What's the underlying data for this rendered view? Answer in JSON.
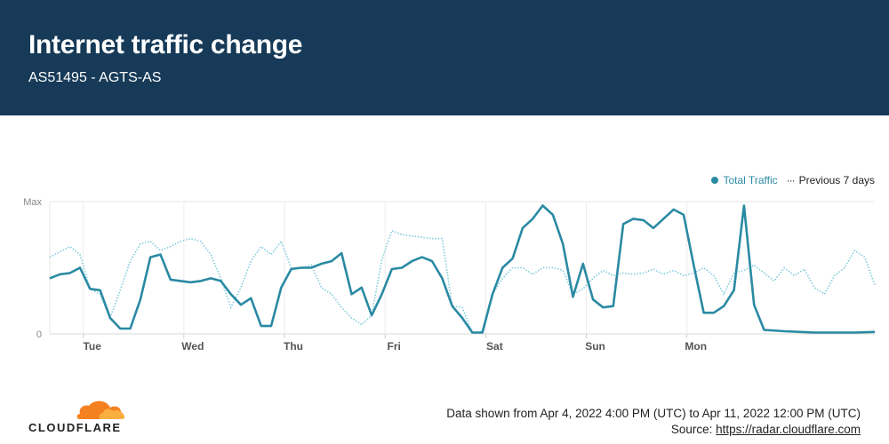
{
  "header": {
    "title": "Internet traffic change",
    "subtitle": "AS51495 - AGTS-AS"
  },
  "legend": {
    "current": "Total Traffic",
    "previous": "Previous 7 days"
  },
  "footer": {
    "range": "Data shown from Apr 4, 2022 4:00 PM (UTC) to Apr 11, 2022 12:00 PM (UTC)",
    "source_prefix": "Source: ",
    "source_link": "https://radar.cloudflare.com"
  },
  "logo": {
    "text": "CLOUDFLARE",
    "icon": "cloud-icon"
  },
  "colors": {
    "header_bg": "#163a58",
    "current": "#2a8aa3",
    "previous": "#7fcbdc"
  },
  "chart_data": {
    "type": "line",
    "x_ticks": [
      "Tue",
      "Wed",
      "Thu",
      "Fri",
      "Sat",
      "Sun",
      "Mon"
    ],
    "y_ticks": [
      "Max",
      "0"
    ],
    "x_start": "2022-04-04T16:00Z",
    "x_end": "2022-04-11T12:00Z",
    "grid": true,
    "legend_position": "top-right",
    "series": [
      {
        "name": "Total Traffic",
        "values": [
          [
            0.0,
            0.42
          ],
          [
            0.1,
            0.45
          ],
          [
            0.2,
            0.46
          ],
          [
            0.3,
            0.5
          ],
          [
            0.4,
            0.34
          ],
          [
            0.5,
            0.33
          ],
          [
            0.6,
            0.12
          ],
          [
            0.7,
            0.04
          ],
          [
            0.8,
            0.04
          ],
          [
            0.9,
            0.26
          ],
          [
            1.0,
            0.58
          ],
          [
            1.1,
            0.6
          ],
          [
            1.2,
            0.41
          ],
          [
            1.3,
            0.4
          ],
          [
            1.4,
            0.39
          ],
          [
            1.5,
            0.4
          ],
          [
            1.6,
            0.42
          ],
          [
            1.7,
            0.4
          ],
          [
            1.8,
            0.3
          ],
          [
            1.9,
            0.22
          ],
          [
            2.0,
            0.27
          ],
          [
            2.1,
            0.06
          ],
          [
            2.2,
            0.06
          ],
          [
            2.3,
            0.35
          ],
          [
            2.4,
            0.49
          ],
          [
            2.5,
            0.5
          ],
          [
            2.6,
            0.5
          ],
          [
            2.7,
            0.53
          ],
          [
            2.8,
            0.55
          ],
          [
            2.9,
            0.61
          ],
          [
            3.0,
            0.3
          ],
          [
            3.1,
            0.35
          ],
          [
            3.2,
            0.14
          ],
          [
            3.3,
            0.3
          ],
          [
            3.4,
            0.49
          ],
          [
            3.5,
            0.5
          ],
          [
            3.6,
            0.55
          ],
          [
            3.7,
            0.58
          ],
          [
            3.8,
            0.55
          ],
          [
            3.9,
            0.42
          ],
          [
            4.0,
            0.21
          ],
          [
            4.1,
            0.12
          ],
          [
            4.2,
            0.01
          ],
          [
            4.3,
            0.01
          ],
          [
            4.4,
            0.3
          ],
          [
            4.5,
            0.5
          ],
          [
            4.6,
            0.57
          ],
          [
            4.7,
            0.8
          ],
          [
            4.8,
            0.87
          ],
          [
            4.9,
            0.97
          ],
          [
            5.0,
            0.9
          ],
          [
            5.1,
            0.68
          ],
          [
            5.2,
            0.28
          ],
          [
            5.3,
            0.53
          ],
          [
            5.4,
            0.26
          ],
          [
            5.5,
            0.2
          ],
          [
            5.6,
            0.21
          ],
          [
            5.7,
            0.83
          ],
          [
            5.8,
            0.87
          ],
          [
            5.9,
            0.86
          ],
          [
            6.0,
            0.8
          ],
          [
            6.1,
            0.87
          ],
          [
            6.2,
            0.94
          ],
          [
            6.3,
            0.9
          ],
          [
            6.4,
            0.52
          ],
          [
            6.5,
            0.16
          ],
          [
            6.6,
            0.16
          ],
          [
            6.7,
            0.21
          ],
          [
            6.8,
            0.33
          ],
          [
            6.9,
            0.97
          ],
          [
            7.0,
            0.22
          ],
          [
            7.1,
            0.03
          ],
          [
            7.3,
            0.02
          ],
          [
            7.6,
            0.01
          ],
          [
            8.0,
            0.01
          ],
          [
            8.2,
            0.015
          ]
        ]
      },
      {
        "name": "Previous 7 days",
        "values": [
          [
            0.0,
            0.58
          ],
          [
            0.1,
            0.62
          ],
          [
            0.2,
            0.66
          ],
          [
            0.3,
            0.6
          ],
          [
            0.4,
            0.34
          ],
          [
            0.5,
            0.3
          ],
          [
            0.6,
            0.12
          ],
          [
            0.7,
            0.33
          ],
          [
            0.8,
            0.55
          ],
          [
            0.9,
            0.68
          ],
          [
            1.0,
            0.7
          ],
          [
            1.1,
            0.63
          ],
          [
            1.2,
            0.66
          ],
          [
            1.3,
            0.7
          ],
          [
            1.4,
            0.72
          ],
          [
            1.5,
            0.7
          ],
          [
            1.6,
            0.6
          ],
          [
            1.7,
            0.42
          ],
          [
            1.8,
            0.2
          ],
          [
            1.9,
            0.35
          ],
          [
            2.0,
            0.55
          ],
          [
            2.1,
            0.66
          ],
          [
            2.2,
            0.6
          ],
          [
            2.3,
            0.7
          ],
          [
            2.4,
            0.5
          ],
          [
            2.5,
            0.5
          ],
          [
            2.6,
            0.52
          ],
          [
            2.7,
            0.35
          ],
          [
            2.8,
            0.3
          ],
          [
            2.9,
            0.2
          ],
          [
            3.0,
            0.12
          ],
          [
            3.1,
            0.07
          ],
          [
            3.2,
            0.14
          ],
          [
            3.3,
            0.56
          ],
          [
            3.4,
            0.78
          ],
          [
            3.5,
            0.75
          ],
          [
            3.6,
            0.74
          ],
          [
            3.7,
            0.73
          ],
          [
            3.8,
            0.72
          ],
          [
            3.9,
            0.72
          ],
          [
            4.0,
            0.21
          ],
          [
            4.1,
            0.2
          ],
          [
            4.2,
            0.01
          ],
          [
            4.3,
            0.02
          ],
          [
            4.4,
            0.3
          ],
          [
            4.5,
            0.42
          ],
          [
            4.6,
            0.5
          ],
          [
            4.7,
            0.5
          ],
          [
            4.8,
            0.45
          ],
          [
            4.9,
            0.5
          ],
          [
            5.0,
            0.5
          ],
          [
            5.1,
            0.48
          ],
          [
            5.2,
            0.3
          ],
          [
            5.3,
            0.34
          ],
          [
            5.4,
            0.42
          ],
          [
            5.5,
            0.48
          ],
          [
            5.6,
            0.44
          ],
          [
            5.7,
            0.46
          ],
          [
            5.8,
            0.45
          ],
          [
            5.9,
            0.46
          ],
          [
            6.0,
            0.49
          ],
          [
            6.1,
            0.45
          ],
          [
            6.2,
            0.48
          ],
          [
            6.3,
            0.44
          ],
          [
            6.4,
            0.46
          ],
          [
            6.5,
            0.5
          ],
          [
            6.6,
            0.44
          ],
          [
            6.7,
            0.3
          ],
          [
            6.8,
            0.46
          ],
          [
            6.9,
            0.48
          ],
          [
            7.0,
            0.52
          ],
          [
            7.1,
            0.46
          ],
          [
            7.2,
            0.4
          ],
          [
            7.3,
            0.5
          ],
          [
            7.4,
            0.44
          ],
          [
            7.5,
            0.49
          ],
          [
            7.6,
            0.35
          ],
          [
            7.7,
            0.3
          ],
          [
            7.8,
            0.44
          ],
          [
            7.9,
            0.5
          ],
          [
            8.0,
            0.63
          ],
          [
            8.1,
            0.58
          ],
          [
            8.2,
            0.37
          ]
        ]
      }
    ]
  }
}
